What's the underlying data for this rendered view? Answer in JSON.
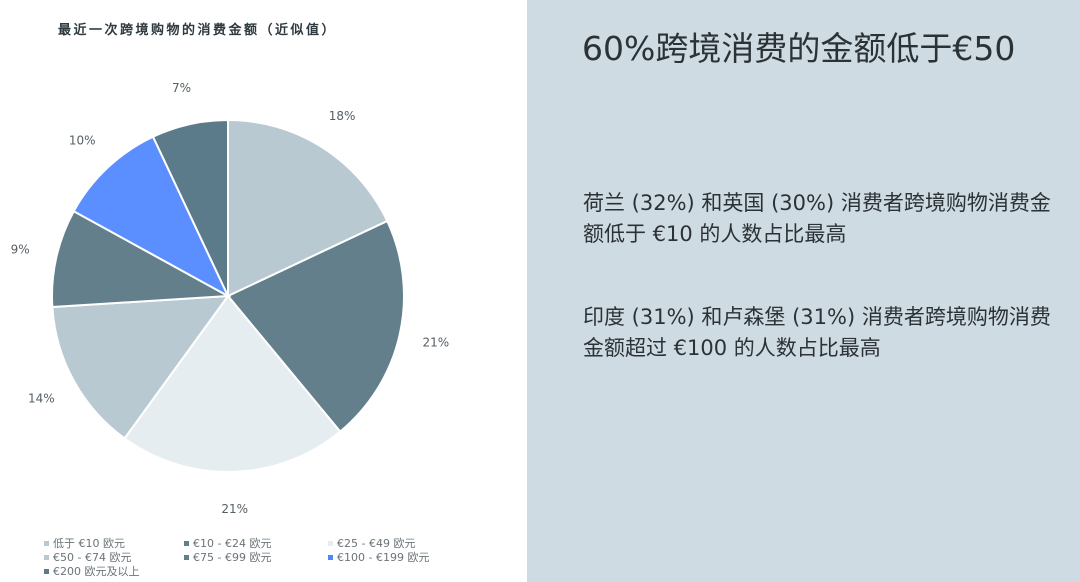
{
  "chart_data": {
    "type": "pie",
    "title": "最近一次跨境购物的消费金额（近似值）",
    "categories": [
      "低于 €10 欧元",
      "€10 - €24 欧元",
      "€25 - €49 欧元",
      "€50 - €74 欧元",
      "€75 - €99 欧元",
      "€100 - €199 欧元",
      "€200 欧元及以上"
    ],
    "values": [
      18,
      21,
      21,
      14,
      9,
      10,
      7
    ],
    "labels": [
      "18%",
      "21%",
      "21%",
      "14%",
      "9%",
      "10%",
      "7%"
    ],
    "colors": [
      "#b9c9d1",
      "#637f8c",
      "#e6edf1",
      "#b9c9d1",
      "#637f8c",
      "#5b8fff",
      "#5b7a8a"
    ],
    "legend_colors": [
      "#b9c9d1",
      "#637f8c",
      "#e6edf1",
      "#b9c9d1",
      "#637f8c",
      "#4f86ff",
      "#5b7a8a"
    ],
    "legend_position": "bottom-left"
  },
  "panel": {
    "headline": "60%跨境消费的金额低于€50",
    "paragraph_1": "荷兰 (32%) 和英国 (30%) 消费者跨境购物消费金额低于 €10 的人数占比最高",
    "paragraph_2": "印度 (31%) 和卢森堡 (31%) 消费者跨境购物消费金额超过 €100 的人数占比最高"
  }
}
